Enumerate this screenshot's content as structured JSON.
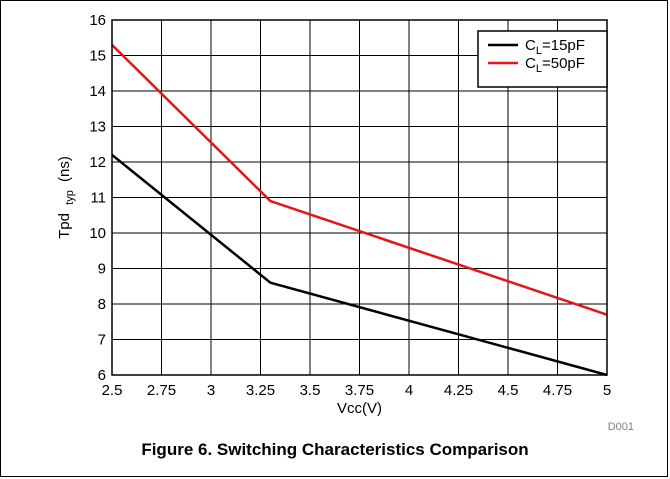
{
  "caption": "Figure 6. Switching Characteristics Comparison",
  "figure_code": "D001",
  "chart_data": {
    "type": "line",
    "xlabel": "Vcc(V)",
    "ylabel": {
      "main": "Tpd",
      "sub": "typ",
      "unit": "(ns)"
    },
    "xlim": [
      2.5,
      5
    ],
    "ylim": [
      6,
      16
    ],
    "xticks": [
      2.5,
      2.75,
      3,
      3.25,
      3.5,
      3.75,
      4,
      4.25,
      4.5,
      4.75,
      5
    ],
    "xtick_labels": [
      "2.5",
      "2.75",
      "3",
      "3.25",
      "3.5",
      "3.75",
      "4",
      "4.25",
      "4.5",
      "4.75",
      "5"
    ],
    "yticks": [
      6,
      7,
      8,
      9,
      10,
      11,
      12,
      13,
      14,
      15,
      16
    ],
    "ytick_labels": [
      "6",
      "7",
      "8",
      "9",
      "10",
      "11",
      "12",
      "13",
      "14",
      "15",
      "16"
    ],
    "grid": true,
    "legend_position": "top-right",
    "series": [
      {
        "name": {
          "main": "C",
          "sub": "L",
          "rest": "=15pF"
        },
        "color": "#000000",
        "x": [
          2.5,
          3.3,
          5.0
        ],
        "y": [
          12.2,
          8.6,
          6.0
        ]
      },
      {
        "name": {
          "main": "C",
          "sub": "L",
          "rest": "=50pF"
        },
        "color": "#e8141b",
        "x": [
          2.5,
          3.3,
          5.0
        ],
        "y": [
          15.3,
          10.9,
          7.7
        ]
      }
    ]
  }
}
